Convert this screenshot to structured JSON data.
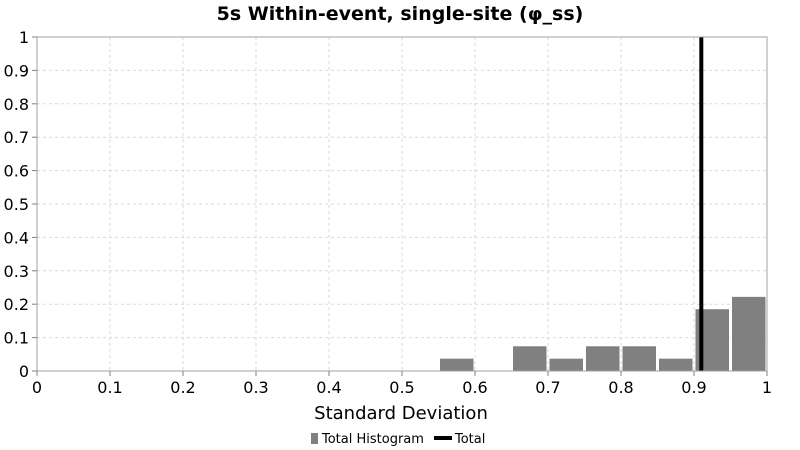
{
  "chart_data": {
    "type": "bar",
    "title": "5s Within-event, single-site (φ_ss)",
    "xlabel": "Standard Deviation",
    "ylabel": "",
    "xlim": [
      0,
      1
    ],
    "ylim": [
      0,
      1
    ],
    "x_ticks": [
      "0",
      "0.1",
      "0.2",
      "0.3",
      "0.4",
      "0.5",
      "0.6",
      "0.7",
      "0.8",
      "0.9",
      "1"
    ],
    "y_ticks": [
      "0",
      "0.1",
      "0.2",
      "0.3",
      "0.4",
      "0.5",
      "0.6",
      "0.7",
      "0.8",
      "0.9",
      "1"
    ],
    "bin_width": 0.05,
    "series": [
      {
        "name": "Total Histogram",
        "color": "#808080",
        "bin_centers": [
          0.575,
          0.675,
          0.725,
          0.775,
          0.825,
          0.875,
          0.925,
          0.975
        ],
        "values": [
          0.037,
          0.074,
          0.037,
          0.074,
          0.074,
          0.037,
          0.185,
          0.222
        ]
      },
      {
        "name": "Total",
        "color": "#000000",
        "x": 0.91
      }
    ],
    "legend": {
      "position": "bottom-center",
      "entries": [
        "Total Histogram",
        "Total"
      ]
    }
  }
}
